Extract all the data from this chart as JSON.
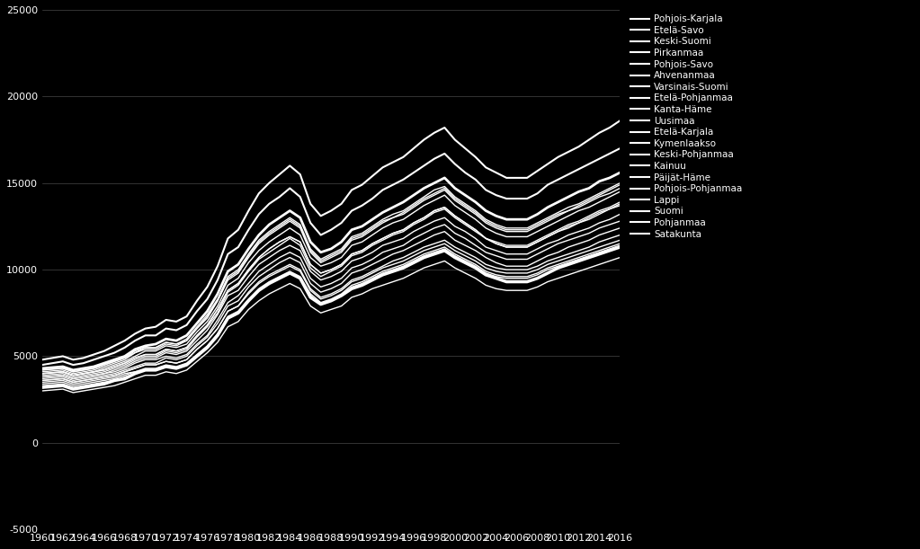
{
  "background_color": "#000000",
  "text_color": "#ffffff",
  "grid_color": "#ffffff",
  "line_color": "#ffffff",
  "ylim": [
    -5000,
    25000
  ],
  "xlim": [
    1960,
    2016
  ],
  "yticks": [
    -5000,
    0,
    5000,
    10000,
    15000,
    20000,
    25000
  ],
  "legend_labels": [
    "Pohjois-Karjala",
    "Etelä-Savo",
    "Keski-Suomi",
    "Pirkanmaa",
    "Pohjois-Savo",
    "Ahvenanmaa",
    "Varsinais-Suomi",
    "Etelä-Pohjanmaa",
    "Kanta-Häme",
    "Uusimaa",
    "Etelä-Karjala",
    "Kymenlaakso",
    "Keski-Pohjanmaa",
    "Kainuu",
    "Päijät-Häme",
    "Pohjois-Pohjanmaa",
    "Lappi",
    "Suomi",
    "Pohjanmaa",
    "Satakunta"
  ],
  "series": {
    "Pohjois-Karjala": [
      3400,
      3450,
      3500,
      3300,
      3400,
      3500,
      3600,
      3700,
      3900,
      4100,
      4200,
      4200,
      4400,
      4300,
      4500,
      5000,
      5500,
      6200,
      7200,
      7500,
      8200,
      8800,
      9200,
      9500,
      9800,
      9500,
      8500,
      8000,
      8200,
      8500,
      9000,
      9200,
      9500,
      9800,
      10000,
      10200,
      10500,
      10800,
      11000,
      11200,
      10800,
      10500,
      10200,
      9800,
      9600,
      9500,
      9500,
      9500,
      9700,
      10000,
      10200,
      10400,
      10600,
      10800,
      11000,
      11200,
      11400,
      11600
    ],
    "Etelä-Savo": [
      3500,
      3550,
      3600,
      3400,
      3500,
      3600,
      3700,
      3800,
      4000,
      4100,
      4300,
      4300,
      4500,
      4400,
      4600,
      5100,
      5600,
      6300,
      7300,
      7600,
      8300,
      8900,
      9300,
      9600,
      9900,
      9600,
      8600,
      8100,
      8300,
      8600,
      9100,
      9300,
      9600,
      9900,
      10100,
      10300,
      10600,
      10900,
      11100,
      11300,
      10900,
      10600,
      10300,
      9900,
      9700,
      9600,
      9600,
      9600,
      9800,
      10100,
      10300,
      10500,
      10700,
      10900,
      11100,
      11300,
      11500,
      11700
    ],
    "Keski-Suomi": [
      3600,
      3650,
      3700,
      3500,
      3600,
      3700,
      3800,
      3900,
      4100,
      4300,
      4500,
      4500,
      4700,
      4600,
      4800,
      5400,
      5900,
      6600,
      7600,
      7900,
      8600,
      9200,
      9600,
      9900,
      10200,
      9900,
      8800,
      8300,
      8500,
      8800,
      9300,
      9500,
      9800,
      10100,
      10300,
      10500,
      10800,
      11100,
      11300,
      11500,
      11100,
      10800,
      10500,
      10100,
      9900,
      9800,
      9800,
      9800,
      10000,
      10300,
      10500,
      10700,
      10900,
      11100,
      11300,
      11500,
      11700,
      11900
    ],
    "Pirkanmaa": [
      3800,
      3850,
      3900,
      3700,
      3800,
      3900,
      4000,
      4100,
      4300,
      4600,
      4800,
      4800,
      5000,
      4900,
      5100,
      5700,
      6200,
      7100,
      8100,
      8500,
      9200,
      9900,
      10300,
      10700,
      11000,
      10700,
      9500,
      9000,
      9200,
      9500,
      10100,
      10300,
      10600,
      11000,
      11200,
      11400,
      11800,
      12100,
      12400,
      12600,
      12100,
      11800,
      11400,
      11000,
      10800,
      10600,
      10600,
      10600,
      10900,
      11200,
      11500,
      11700,
      11900,
      12100,
      12400,
      12600,
      12800,
      13000
    ],
    "Pohjois-Savo": [
      3600,
      3650,
      3700,
      3500,
      3600,
      3700,
      3800,
      3900,
      4100,
      4300,
      4500,
      4500,
      4700,
      4600,
      4800,
      5400,
      5900,
      6600,
      7600,
      7900,
      8700,
      9300,
      9700,
      10000,
      10300,
      10000,
      8900,
      8400,
      8600,
      8900,
      9400,
      9600,
      9900,
      10200,
      10500,
      10700,
      11000,
      11300,
      11500,
      11700,
      11300,
      11000,
      10700,
      10300,
      10100,
      10000,
      10000,
      10000,
      10200,
      10500,
      10700,
      10900,
      11100,
      11300,
      11600,
      11800,
      12000,
      12200
    ],
    "Ahvenanmaa": [
      4500,
      4600,
      4700,
      4500,
      4600,
      4800,
      5000,
      5200,
      5500,
      5900,
      6200,
      6200,
      6600,
      6500,
      6800,
      7600,
      8300,
      9400,
      10900,
      11300,
      12300,
      13200,
      13800,
      14200,
      14700,
      14200,
      12700,
      12000,
      12300,
      12700,
      13400,
      13700,
      14100,
      14600,
      14900,
      15200,
      15600,
      16000,
      16400,
      16700,
      16100,
      15600,
      15200,
      14600,
      14300,
      14100,
      14100,
      14100,
      14400,
      14900,
      15200,
      15500,
      15800,
      16100,
      16400,
      16700,
      17000,
      17300
    ],
    "Varsinais-Suomi": [
      4000,
      4050,
      4100,
      3900,
      4000,
      4100,
      4200,
      4400,
      4600,
      4900,
      5100,
      5100,
      5400,
      5300,
      5500,
      6200,
      6800,
      7700,
      8800,
      9200,
      10000,
      10700,
      11200,
      11600,
      11900,
      11600,
      10300,
      9800,
      10000,
      10300,
      10900,
      11100,
      11500,
      11800,
      12100,
      12300,
      12700,
      13000,
      13400,
      13600,
      13100,
      12700,
      12300,
      11800,
      11600,
      11400,
      11400,
      11400,
      11700,
      12000,
      12300,
      12600,
      12800,
      13100,
      13400,
      13600,
      13900,
      14100
    ],
    "Etelä-Pohjanmaa": [
      3700,
      3750,
      3800,
      3600,
      3700,
      3800,
      3900,
      4000,
      4200,
      4400,
      4600,
      4600,
      4900,
      4800,
      5000,
      5600,
      6100,
      6900,
      7900,
      8200,
      9000,
      9600,
      10000,
      10400,
      10700,
      10400,
      9200,
      8700,
      8900,
      9200,
      9800,
      10000,
      10300,
      10600,
      10900,
      11100,
      11400,
      11700,
      12000,
      12200,
      11700,
      11400,
      11100,
      10700,
      10400,
      10200,
      10200,
      10200,
      10500,
      10800,
      11000,
      11300,
      11500,
      11700,
      12000,
      12200,
      12400,
      12600
    ],
    "Kanta-Häme": [
      4000,
      4050,
      4100,
      3900,
      4000,
      4100,
      4200,
      4400,
      4600,
      4900,
      5100,
      5100,
      5400,
      5300,
      5500,
      6200,
      6800,
      7700,
      8800,
      9200,
      10000,
      10700,
      11200,
      11600,
      11900,
      11600,
      10300,
      9800,
      10000,
      10300,
      10900,
      11100,
      11500,
      11800,
      12100,
      12300,
      12700,
      13000,
      13400,
      13600,
      13100,
      12700,
      12300,
      11800,
      11500,
      11300,
      11300,
      11300,
      11600,
      11900,
      12200,
      12400,
      12700,
      12900,
      13200,
      13500,
      13700,
      13900
    ],
    "Uusimaa": [
      4800,
      4900,
      5000,
      4800,
      4900,
      5100,
      5300,
      5600,
      5900,
      6300,
      6600,
      6700,
      7100,
      7000,
      7300,
      8200,
      9000,
      10200,
      11800,
      12300,
      13400,
      14400,
      15000,
      15500,
      16000,
      15500,
      13800,
      13100,
      13400,
      13800,
      14600,
      14900,
      15400,
      15900,
      16200,
      16500,
      17000,
      17500,
      17900,
      18200,
      17500,
      17000,
      16500,
      15900,
      15600,
      15300,
      15300,
      15300,
      15700,
      16100,
      16500,
      16800,
      17100,
      17500,
      17900,
      18200,
      18600,
      18900
    ],
    "Etelä-Karjala": [
      3800,
      3850,
      3900,
      3700,
      3800,
      3900,
      4000,
      4200,
      4400,
      4700,
      4900,
      4900,
      5200,
      5100,
      5300,
      5900,
      6500,
      7400,
      8500,
      8800,
      9600,
      10300,
      10700,
      11100,
      11400,
      11100,
      9900,
      9400,
      9600,
      9900,
      10500,
      10700,
      11000,
      11400,
      11600,
      11800,
      12200,
      12500,
      12800,
      13000,
      12500,
      12200,
      11800,
      11300,
      11100,
      10900,
      10900,
      10900,
      11200,
      11500,
      11700,
      12000,
      12200,
      12400,
      12700,
      12900,
      13200,
      13400
    ],
    "Kymenlaakso": [
      4200,
      4250,
      4300,
      4100,
      4200,
      4300,
      4500,
      4700,
      4900,
      5300,
      5500,
      5500,
      5800,
      5700,
      6000,
      6700,
      7400,
      8300,
      9600,
      10000,
      10900,
      11700,
      12200,
      12600,
      13000,
      12600,
      11200,
      10600,
      10900,
      11200,
      11900,
      12100,
      12500,
      12900,
      13200,
      13400,
      13800,
      14200,
      14600,
      14800,
      14200,
      13800,
      13400,
      12900,
      12600,
      12400,
      12400,
      12400,
      12700,
      13000,
      13300,
      13600,
      13800,
      14100,
      14400,
      14700,
      15000,
      15200
    ],
    "Keski-Pohjanmaa": [
      3200,
      3250,
      3300,
      3100,
      3200,
      3300,
      3400,
      3600,
      3700,
      4000,
      4200,
      4200,
      4400,
      4300,
      4500,
      5000,
      5500,
      6200,
      7200,
      7500,
      8200,
      8800,
      9200,
      9500,
      9800,
      9500,
      8400,
      8000,
      8200,
      8500,
      8900,
      9100,
      9400,
      9700,
      9900,
      10100,
      10400,
      10700,
      10900,
      11100,
      10700,
      10400,
      10100,
      9700,
      9500,
      9300,
      9300,
      9300,
      9500,
      9800,
      10100,
      10300,
      10500,
      10700,
      10900,
      11100,
      11300,
      11500
    ],
    "Kainuu": [
      3000,
      3050,
      3100,
      2900,
      3000,
      3100,
      3200,
      3300,
      3500,
      3700,
      3900,
      3900,
      4100,
      4000,
      4200,
      4700,
      5200,
      5800,
      6700,
      7000,
      7700,
      8200,
      8600,
      8900,
      9200,
      8900,
      7900,
      7500,
      7700,
      7900,
      8400,
      8600,
      8900,
      9100,
      9300,
      9500,
      9800,
      10100,
      10300,
      10500,
      10100,
      9800,
      9500,
      9100,
      8900,
      8800,
      8800,
      8800,
      9000,
      9300,
      9500,
      9700,
      9900,
      10100,
      10300,
      10500,
      10700,
      10900
    ],
    "Päijät-Häme": [
      4100,
      4150,
      4200,
      4000,
      4100,
      4200,
      4400,
      4600,
      4800,
      5200,
      5400,
      5400,
      5700,
      5600,
      5900,
      6600,
      7200,
      8200,
      9400,
      9800,
      10700,
      11500,
      12000,
      12400,
      12800,
      12400,
      11000,
      10400,
      10700,
      11000,
      11700,
      11900,
      12300,
      12700,
      13000,
      13200,
      13600,
      14000,
      14300,
      14600,
      14000,
      13600,
      13200,
      12700,
      12400,
      12200,
      12200,
      12200,
      12500,
      12800,
      13100,
      13400,
      13600,
      13900,
      14200,
      14400,
      14700,
      15000
    ],
    "Pohjois-Pohjanmaa": [
      3300,
      3350,
      3400,
      3200,
      3300,
      3400,
      3500,
      3600,
      3800,
      4000,
      4200,
      4200,
      4400,
      4300,
      4500,
      5000,
      5500,
      6200,
      7200,
      7500,
      8200,
      8800,
      9200,
      9500,
      9800,
      9500,
      8400,
      8000,
      8200,
      8500,
      8900,
      9100,
      9400,
      9700,
      9900,
      10100,
      10400,
      10700,
      10900,
      11100,
      10700,
      10400,
      10100,
      9700,
      9500,
      9300,
      9300,
      9300,
      9500,
      9800,
      10100,
      10300,
      10500,
      10700,
      10900,
      11100,
      11300,
      11500
    ],
    "Lappi": [
      3900,
      3950,
      4000,
      3800,
      3900,
      4000,
      4100,
      4300,
      4500,
      4800,
      5000,
      5000,
      5300,
      5200,
      5400,
      6100,
      6700,
      7500,
      8700,
      9100,
      9900,
      10600,
      11000,
      11400,
      11800,
      11400,
      10100,
      9600,
      9900,
      10200,
      10800,
      11000,
      11400,
      11700,
      12000,
      12200,
      12600,
      12900,
      13300,
      13500,
      13000,
      12600,
      12200,
      11800,
      11500,
      11300,
      11300,
      11300,
      11600,
      11900,
      12200,
      12500,
      12700,
      13000,
      13300,
      13500,
      13800,
      14000
    ],
    "Suomi": [
      4300,
      4350,
      4400,
      4200,
      4300,
      4400,
      4600,
      4800,
      5000,
      5400,
      5600,
      5700,
      6000,
      5900,
      6200,
      6900,
      7600,
      8600,
      9900,
      10300,
      11200,
      12000,
      12600,
      13000,
      13400,
      13000,
      11600,
      11000,
      11200,
      11600,
      12300,
      12500,
      12900,
      13300,
      13600,
      13900,
      14300,
      14700,
      15000,
      15300,
      14700,
      14300,
      13900,
      13400,
      13100,
      12900,
      12900,
      12900,
      13200,
      13600,
      13900,
      14200,
      14500,
      14700,
      15100,
      15300,
      15600,
      15900
    ],
    "Pohjanmaa": [
      4000,
      4050,
      4100,
      3900,
      4000,
      4100,
      4300,
      4500,
      4700,
      5000,
      5300,
      5300,
      5600,
      5500,
      5700,
      6400,
      7000,
      7900,
      9100,
      9500,
      10400,
      11100,
      11600,
      12000,
      12400,
      12000,
      10700,
      10200,
      10400,
      10700,
      11400,
      11600,
      12000,
      12400,
      12700,
      12900,
      13300,
      13700,
      14000,
      14300,
      13700,
      13300,
      12900,
      12400,
      12100,
      11900,
      11900,
      11900,
      12200,
      12500,
      12800,
      13100,
      13400,
      13600,
      13900,
      14200,
      14500,
      14700
    ],
    "Satakunta": [
      4200,
      4250,
      4300,
      4100,
      4200,
      4300,
      4500,
      4700,
      4900,
      5200,
      5500,
      5500,
      5800,
      5700,
      5900,
      6600,
      7300,
      8200,
      9500,
      9900,
      10800,
      11600,
      12100,
      12500,
      12900,
      12500,
      11100,
      10500,
      10800,
      11100,
      11800,
      12000,
      12400,
      12800,
      13000,
      13300,
      13700,
      14100,
      14400,
      14700,
      14100,
      13700,
      13300,
      12800,
      12500,
      12300,
      12300,
      12300,
      12600,
      12900,
      13200,
      13400,
      13700,
      14000,
      14300,
      14600,
      14900,
      15200
    ]
  }
}
